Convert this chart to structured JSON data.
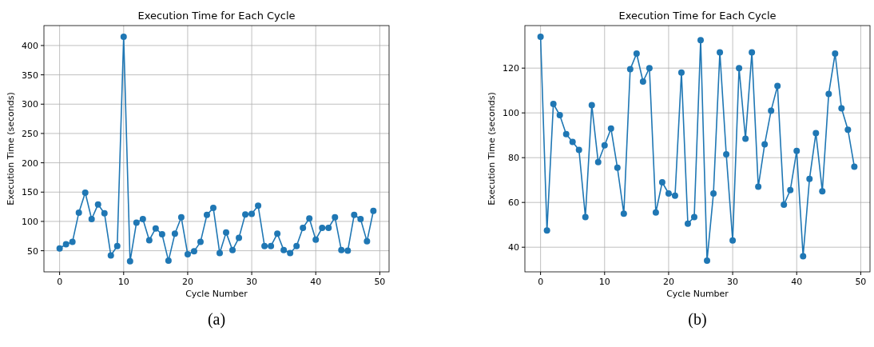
{
  "chart_data": [
    {
      "type": "line",
      "title": "Execution Time for Each Cycle",
      "xlabel": "Cycle Number",
      "ylabel": "Execution Time (seconds)",
      "annotations": [
        "(a)"
      ],
      "marker": "circle",
      "grid": true,
      "xlim": [
        -2.45,
        51.45
      ],
      "xticks": [
        0,
        10,
        20,
        30,
        40,
        50
      ],
      "ylim": [
        14,
        434
      ],
      "yticks": [
        50,
        100,
        150,
        200,
        250,
        300,
        350,
        400
      ],
      "x": [
        0,
        1,
        2,
        3,
        4,
        5,
        6,
        7,
        8,
        9,
        10,
        11,
        12,
        13,
        14,
        15,
        16,
        17,
        18,
        19,
        20,
        21,
        22,
        23,
        24,
        25,
        26,
        27,
        28,
        29,
        30,
        31,
        32,
        33,
        34,
        35,
        36,
        37,
        38,
        39,
        40,
        41,
        42,
        43,
        44,
        45,
        46,
        47,
        48,
        49
      ],
      "series": [
        {
          "color": "#1f77b4",
          "values": [
            54,
            61,
            65,
            115,
            149,
            104,
            129,
            114,
            42,
            58,
            415,
            32,
            98,
            104,
            68,
            88,
            78,
            33,
            79,
            107,
            44,
            49,
            65,
            111,
            123,
            46,
            81,
            51,
            72,
            112,
            113,
            127,
            58,
            58,
            79,
            51,
            46,
            58,
            89,
            105,
            69,
            89,
            89,
            107,
            51,
            50,
            111,
            104,
            66,
            118
          ]
        }
      ]
    },
    {
      "type": "line",
      "title": "Execution Time for Each Cycle",
      "xlabel": "Cycle Number",
      "ylabel": "Execution Time (seconds)",
      "annotations": [
        "(b)"
      ],
      "marker": "circle",
      "grid": true,
      "xlim": [
        -2.45,
        51.45
      ],
      "xticks": [
        0,
        10,
        20,
        30,
        40,
        50
      ],
      "ylim": [
        29,
        139
      ],
      "yticks": [
        40,
        60,
        80,
        100,
        120
      ],
      "x": [
        0,
        1,
        2,
        3,
        4,
        5,
        6,
        7,
        8,
        9,
        10,
        11,
        12,
        13,
        14,
        15,
        16,
        17,
        18,
        19,
        20,
        21,
        22,
        23,
        24,
        25,
        26,
        27,
        28,
        29,
        30,
        31,
        32,
        33,
        34,
        35,
        36,
        37,
        38,
        39,
        40,
        41,
        42,
        43,
        44,
        45,
        46,
        47,
        48,
        49
      ],
      "series": [
        {
          "color": "#1f77b4",
          "values": [
            134,
            47.5,
            104,
            99,
            90.5,
            87,
            83.5,
            53.5,
            103.5,
            78,
            85.5,
            93,
            75.5,
            55,
            119.5,
            126.5,
            114,
            120,
            55.5,
            69,
            64,
            63,
            118,
            50.5,
            53.5,
            132.5,
            34,
            64,
            127,
            81.5,
            43,
            120,
            88.5,
            127,
            67,
            86,
            101,
            112,
            59,
            65.5,
            83,
            36,
            70.5,
            91,
            65,
            108.5,
            126.5,
            102,
            92.5,
            76
          ]
        }
      ]
    }
  ]
}
